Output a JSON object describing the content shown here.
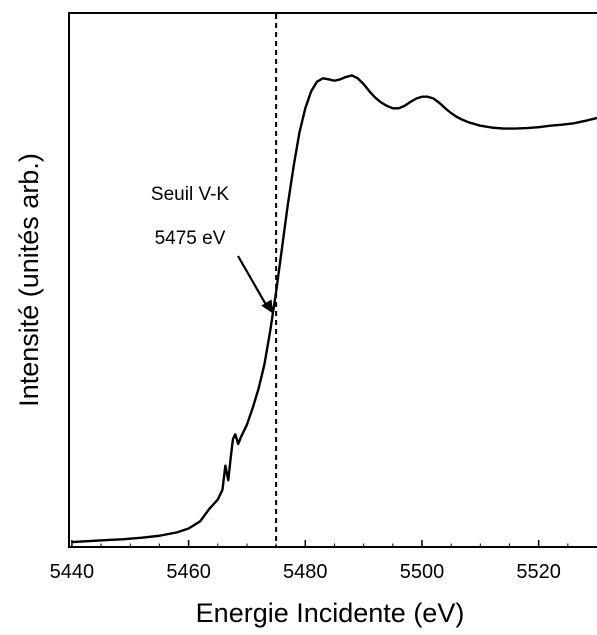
{
  "chart_data": {
    "type": "line",
    "xlabel": "Energie Incidente (eV)",
    "ylabel": "Intensité (unités arb.)",
    "xlim": [
      5439.5,
      5530
    ],
    "ylim": [
      0,
      1
    ],
    "x_ticks": [
      5440,
      5460,
      5480,
      5500,
      5520
    ],
    "y_ticks_shown": false,
    "grid": false,
    "series": [
      {
        "x": [
          5440,
          5443,
          5446,
          5449,
          5452,
          5455,
          5458,
          5460,
          5462,
          5463.5,
          5465,
          5465.8,
          5466.3,
          5466.8,
          5467.2,
          5467.6,
          5468,
          5468.5,
          5469,
          5470,
          5471,
          5472,
          5473,
          5474,
          5475,
          5476,
          5477,
          5478,
          5479,
          5480,
          5481,
          5482,
          5483,
          5484,
          5485,
          5486,
          5487,
          5488,
          5489,
          5490,
          5491,
          5492,
          5493,
          5494,
          5495,
          5496,
          5497,
          5498,
          5499,
          5500,
          5501,
          5502,
          5503,
          5504,
          5505,
          5506,
          5507,
          5508,
          5510,
          5512,
          5514,
          5516,
          5518,
          5520,
          5522,
          5524,
          5526,
          5528,
          5530
        ],
        "y": [
          0.002,
          0.004,
          0.006,
          0.008,
          0.011,
          0.015,
          0.022,
          0.03,
          0.045,
          0.07,
          0.09,
          0.11,
          0.16,
          0.13,
          0.175,
          0.215,
          0.225,
          0.205,
          0.22,
          0.245,
          0.28,
          0.32,
          0.37,
          0.44,
          0.52,
          0.61,
          0.7,
          0.78,
          0.85,
          0.9,
          0.935,
          0.955,
          0.962,
          0.96,
          0.957,
          0.96,
          0.965,
          0.968,
          0.962,
          0.95,
          0.935,
          0.922,
          0.912,
          0.905,
          0.9,
          0.9,
          0.905,
          0.913,
          0.92,
          0.924,
          0.924,
          0.92,
          0.911,
          0.9,
          0.89,
          0.882,
          0.876,
          0.871,
          0.864,
          0.86,
          0.858,
          0.858,
          0.859,
          0.861,
          0.864,
          0.866,
          0.869,
          0.874,
          0.88
        ]
      }
    ],
    "vline": {
      "x": 5475,
      "style": "dashed"
    },
    "annotation": {
      "lines": [
        "Seuil V-K",
        "5475 eV"
      ],
      "arrow_to": {
        "x": 5474.5,
        "y": 0.475
      }
    }
  }
}
